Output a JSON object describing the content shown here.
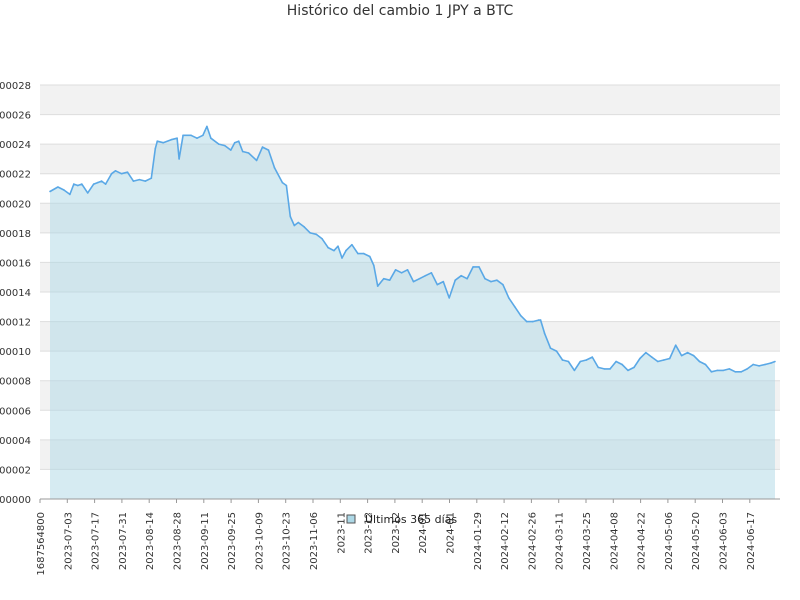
{
  "chart_data": {
    "type": "area",
    "title": "Histórico del cambio 1 JPY a BTC",
    "xlabel": "",
    "ylabel": "",
    "ylim": [
      0,
      2.8e-07
    ],
    "x_tick_labels": [
      "1687564800",
      "2023-07-03",
      "2023-07-17",
      "2023-07-31",
      "2023-08-14",
      "2023-08-28",
      "2023-09-11",
      "2023-09-25",
      "2023-10-09",
      "2023-10-23",
      "2023-11-06",
      "2023-11",
      "2023-12",
      "2023-12",
      "2024-01",
      "2024-01",
      "2024-01-29",
      "2024-02-12",
      "2024-02-26",
      "2024-03-11",
      "2024-03-25",
      "2024-04-08",
      "2024-04-22",
      "2024-05-06",
      "2024-05-20",
      "2024-06-03",
      "2024-06-17"
    ],
    "y_tick_labels": [
      "000000",
      "000002",
      "000004",
      "000006",
      "000008",
      "000010",
      "000012",
      "000014",
      "000016",
      "000018",
      "000020",
      "000022",
      "000024",
      "000026",
      "000028"
    ],
    "y_ticks": [
      0,
      2e-08,
      4e-08,
      6e-08,
      8e-08,
      1e-07,
      1.2e-07,
      1.4e-07,
      1.6e-07,
      1.8e-07,
      2e-07,
      2.2e-07,
      2.4e-07,
      2.6e-07,
      2.8e-07
    ],
    "grid": true,
    "legend_position": "bottom-center",
    "colors": {
      "line": "#5aa8e6",
      "fill": "#add8e6",
      "band": "#f2f2f2"
    },
    "series": [
      {
        "name": "Últimos 365 días",
        "x": [
          "2023-06-24",
          "2023-06-28",
          "2023-07-01",
          "2023-07-04",
          "2023-07-06",
          "2023-07-08",
          "2023-07-10",
          "2023-07-13",
          "2023-07-16",
          "2023-07-18",
          "2023-07-20",
          "2023-07-22",
          "2023-07-25",
          "2023-07-27",
          "2023-07-30",
          "2023-08-02",
          "2023-08-05",
          "2023-08-08",
          "2023-08-11",
          "2023-08-14",
          "2023-08-16",
          "2023-08-17",
          "2023-08-20",
          "2023-08-24",
          "2023-08-27",
          "2023-08-28",
          "2023-08-30",
          "2023-09-03",
          "2023-09-06",
          "2023-09-09",
          "2023-09-11",
          "2023-09-13",
          "2023-09-17",
          "2023-09-20",
          "2023-09-23",
          "2023-09-25",
          "2023-09-27",
          "2023-09-29",
          "2023-10-02",
          "2023-10-06",
          "2023-10-09",
          "2023-10-12",
          "2023-10-15",
          "2023-10-19",
          "2023-10-21",
          "2023-10-23",
          "2023-10-25",
          "2023-10-27",
          "2023-10-30",
          "2023-11-02",
          "2023-11-05",
          "2023-11-08",
          "2023-11-11",
          "2023-11-14",
          "2023-11-16",
          "2023-11-18",
          "2023-11-20",
          "2023-11-23",
          "2023-11-26",
          "2023-11-29",
          "2023-12-02",
          "2023-12-04",
          "2023-12-06",
          "2023-12-09",
          "2023-12-12",
          "2023-12-15",
          "2023-12-18",
          "2023-12-21",
          "2023-12-24",
          "2023-12-27",
          "2023-12-30",
          "2024-01-02",
          "2024-01-05",
          "2024-01-08",
          "2024-01-11",
          "2024-01-14",
          "2024-01-17",
          "2024-01-20",
          "2024-01-23",
          "2024-01-26",
          "2024-01-29",
          "2024-02-01",
          "2024-02-04",
          "2024-02-07",
          "2024-02-10",
          "2024-02-13",
          "2024-02-16",
          "2024-02-19",
          "2024-02-22",
          "2024-02-25",
          "2024-02-26",
          "2024-02-28",
          "2024-03-02",
          "2024-03-05",
          "2024-03-08",
          "2024-03-11",
          "2024-03-14",
          "2024-03-17",
          "2024-03-20",
          "2024-03-23",
          "2024-03-26",
          "2024-03-29",
          "2024-04-01",
          "2024-04-04",
          "2024-04-07",
          "2024-04-10",
          "2024-04-13",
          "2024-04-16",
          "2024-04-19",
          "2024-04-22",
          "2024-04-25",
          "2024-04-28",
          "2024-05-01",
          "2024-05-04",
          "2024-05-07",
          "2024-05-10",
          "2024-05-13",
          "2024-05-16",
          "2024-05-19",
          "2024-05-22",
          "2024-05-25",
          "2024-05-28",
          "2024-05-31",
          "2024-06-03",
          "2024-06-06",
          "2024-06-09",
          "2024-06-12",
          "2024-06-15",
          "2024-06-18",
          "2024-06-21",
          "2024-06-23"
        ],
        "y": [
          2.08e-07,
          2.11e-07,
          2.09e-07,
          2.06e-07,
          2.13e-07,
          2.12e-07,
          2.13e-07,
          2.07e-07,
          2.13e-07,
          2.14e-07,
          2.15e-07,
          2.13e-07,
          2.2e-07,
          2.22e-07,
          2.2e-07,
          2.21e-07,
          2.15e-07,
          2.16e-07,
          2.15e-07,
          2.17e-07,
          2.37e-07,
          2.42e-07,
          2.41e-07,
          2.43e-07,
          2.44e-07,
          2.3e-07,
          2.46e-07,
          2.46e-07,
          2.44e-07,
          2.46e-07,
          2.52e-07,
          2.44e-07,
          2.4e-07,
          2.39e-07,
          2.36e-07,
          2.41e-07,
          2.42e-07,
          2.35e-07,
          2.34e-07,
          2.29e-07,
          2.38e-07,
          2.36e-07,
          2.24e-07,
          2.14e-07,
          2.12e-07,
          1.91e-07,
          1.85e-07,
          1.87e-07,
          1.84e-07,
          1.8e-07,
          1.79e-07,
          1.76e-07,
          1.7e-07,
          1.68e-07,
          1.71e-07,
          1.63e-07,
          1.68e-07,
          1.72e-07,
          1.66e-07,
          1.66e-07,
          1.64e-07,
          1.58e-07,
          1.44e-07,
          1.49e-07,
          1.48e-07,
          1.55e-07,
          1.53e-07,
          1.55e-07,
          1.47e-07,
          1.49e-07,
          1.51e-07,
          1.53e-07,
          1.45e-07,
          1.47e-07,
          1.36e-07,
          1.48e-07,
          1.51e-07,
          1.49e-07,
          1.57e-07,
          1.57e-07,
          1.49e-07,
          1.47e-07,
          1.48e-07,
          1.45e-07,
          1.36e-07,
          1.3e-07,
          1.24e-07,
          1.2e-07,
          1.2e-07,
          1.21e-07,
          1.21e-07,
          1.12e-07,
          1.02e-07,
          1e-07,
          9.4e-08,
          9.3e-08,
          8.7e-08,
          9.3e-08,
          9.4e-08,
          9.6e-08,
          8.9e-08,
          8.8e-08,
          8.8e-08,
          9.3e-08,
          9.1e-08,
          8.7e-08,
          8.9e-08,
          9.5e-08,
          9.9e-08,
          9.6e-08,
          9.3e-08,
          9.4e-08,
          9.5e-08,
          1.04e-07,
          9.7e-08,
          9.9e-08,
          9.7e-08,
          9.3e-08,
          9.1e-08,
          8.6e-08,
          8.7e-08,
          8.7e-08,
          8.8e-08,
          8.6e-08,
          8.6e-08,
          8.8e-08,
          9.1e-08,
          9e-08,
          9.1e-08,
          9.2e-08,
          9.3e-08
        ]
      }
    ]
  }
}
